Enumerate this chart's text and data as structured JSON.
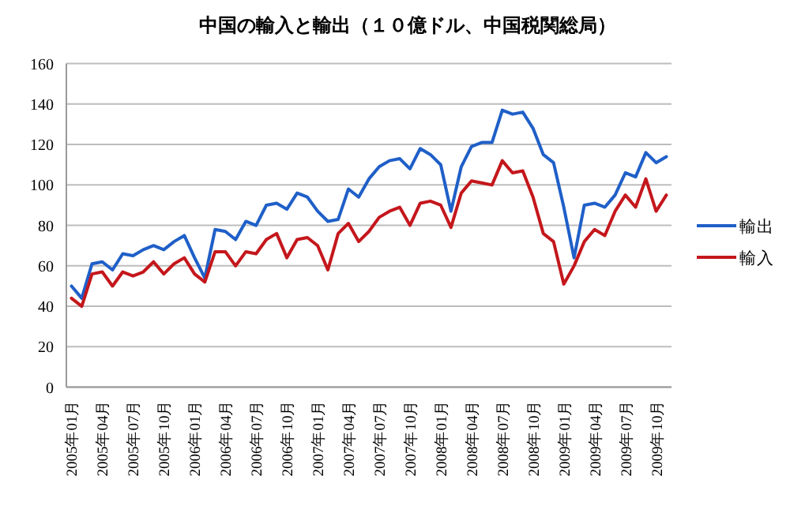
{
  "chart_data": {
    "type": "line",
    "title": "中国の輸入と輸出（１０億ドル、中国税関総局）",
    "categories": [
      "2005年01月",
      null,
      null,
      "2005年04月",
      null,
      null,
      "2005年07月",
      null,
      null,
      "2005年10月",
      null,
      null,
      "2006年01月",
      null,
      null,
      "2006年04月",
      null,
      null,
      "2006年07月",
      null,
      null,
      "2006年10月",
      null,
      null,
      "2007年01月",
      null,
      null,
      "2007年04月",
      null,
      null,
      "2007年07月",
      null,
      null,
      "2007年10月",
      null,
      null,
      "2008年01月",
      null,
      null,
      "2008年04月",
      null,
      null,
      "2008年07月",
      null,
      null,
      "2008年10月",
      null,
      null,
      "2009年01月",
      null,
      null,
      "2009年04月",
      null,
      null,
      "2009年07月",
      null,
      null,
      "2009年10月",
      null
    ],
    "series": [
      {
        "name": "輸出",
        "color": "#1f5fc8",
        "values": [
          50,
          44,
          61,
          62,
          58,
          66,
          65,
          68,
          70,
          68,
          72,
          75,
          64,
          54,
          78,
          77,
          73,
          82,
          80,
          90,
          91,
          88,
          96,
          94,
          87,
          82,
          83,
          98,
          94,
          103,
          109,
          112,
          113,
          108,
          118,
          115,
          110,
          87,
          109,
          119,
          121,
          121,
          137,
          135,
          136,
          128,
          115,
          111,
          89,
          64,
          90,
          91,
          89,
          95,
          106,
          104,
          116,
          111,
          114
        ]
      },
      {
        "name": "輸入",
        "color": "#c4171c",
        "values": [
          44,
          40,
          56,
          57,
          50,
          57,
          55,
          57,
          62,
          56,
          61,
          64,
          56,
          52,
          67,
          67,
          60,
          67,
          66,
          73,
          76,
          64,
          73,
          74,
          70,
          58,
          76,
          81,
          72,
          77,
          84,
          87,
          89,
          80,
          91,
          92,
          90,
          79,
          96,
          102,
          101,
          100,
          112,
          106,
          107,
          94,
          76,
          72,
          51,
          60,
          72,
          78,
          75,
          87,
          95,
          89,
          103,
          87,
          95
        ]
      }
    ],
    "ylim": [
      0,
      160
    ],
    "yticks": [
      0,
      20,
      40,
      60,
      80,
      100,
      120,
      140,
      160
    ],
    "grid": "y",
    "legend": "right",
    "marker": "none",
    "line_style": "solid"
  }
}
